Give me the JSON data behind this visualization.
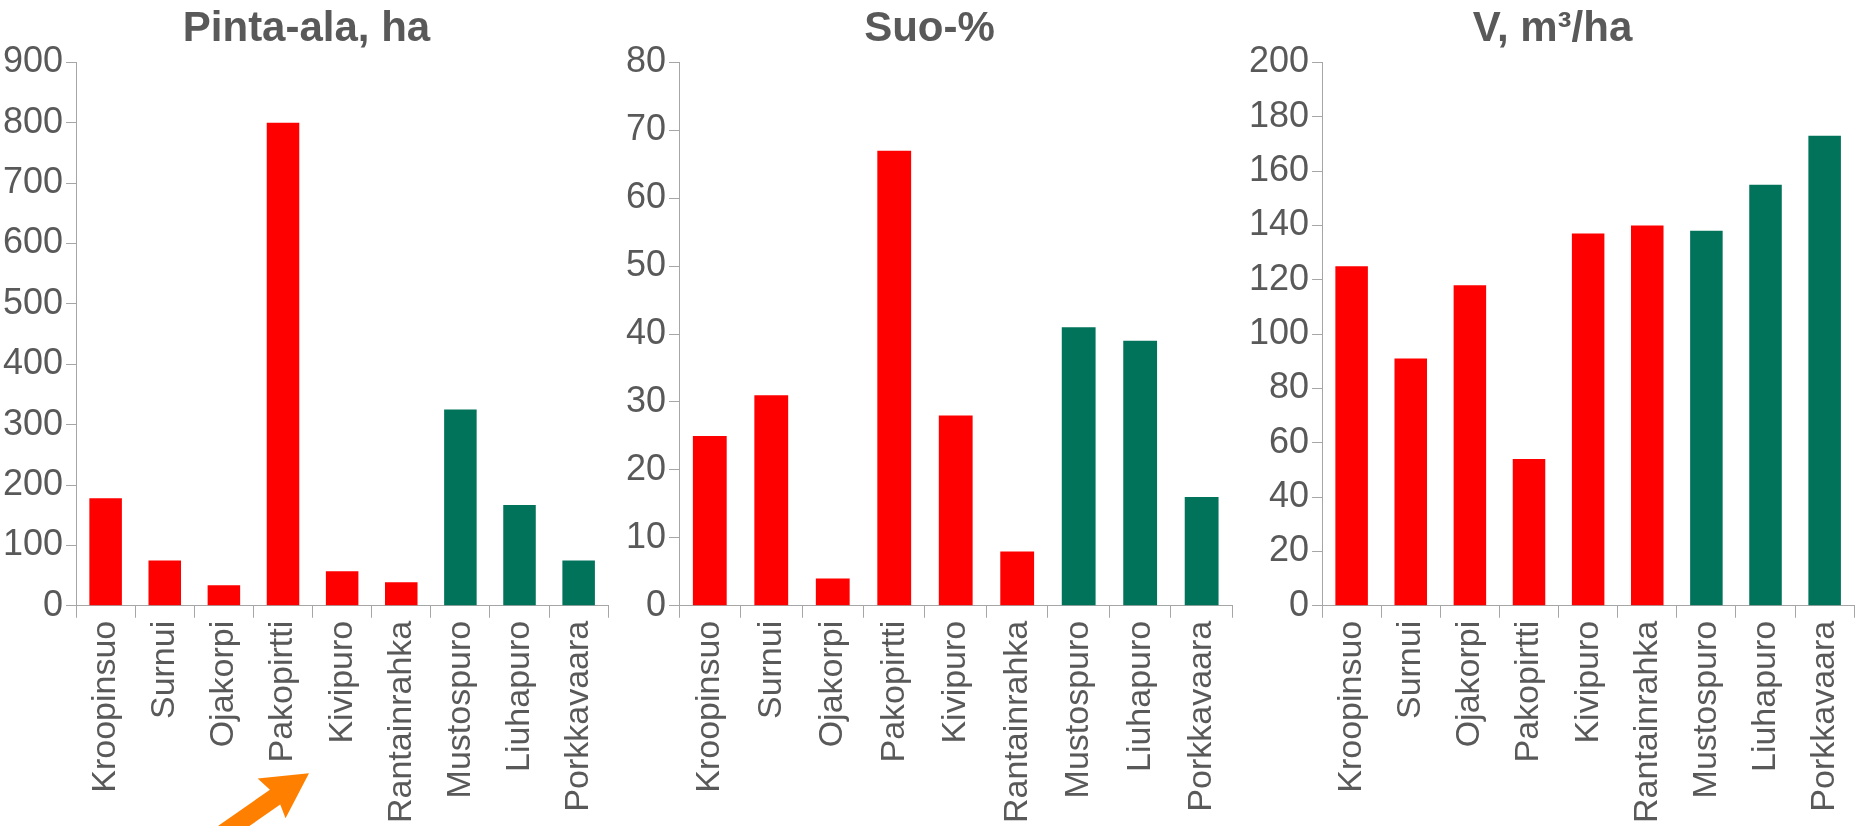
{
  "chart_data": [
    {
      "type": "bar",
      "title": "Pinta-ala, ha",
      "categories": [
        "Kroopinsuo",
        "Surnui",
        "Ojakorpi",
        "Pakopirtti",
        "Kivipuro",
        "Rantainrahka",
        "Mustospuro",
        "Liuhapuro",
        "Porkkavaara"
      ],
      "values": [
        178,
        75,
        34,
        800,
        57,
        39,
        325,
        167,
        75
      ],
      "colors": [
        "#ff0000",
        "#ff0000",
        "#ff0000",
        "#ff0000",
        "#ff0000",
        "#ff0000",
        "#00735a",
        "#00735a",
        "#00735a"
      ],
      "ylim": [
        0,
        900
      ],
      "yticks": [
        0,
        100,
        200,
        300,
        400,
        500,
        600,
        700,
        800,
        900
      ],
      "grid": false,
      "legend": false
    },
    {
      "type": "bar",
      "title": "Suo-%",
      "categories": [
        "Kroopinsuo",
        "Surnui",
        "Ojakorpi",
        "Pakopirtti",
        "Kivipuro",
        "Rantainrahka",
        "Mustospuro",
        "Liuhapuro",
        "Porkkavaara"
      ],
      "values": [
        25,
        31,
        4,
        67,
        28,
        8,
        41,
        39,
        16
      ],
      "colors": [
        "#ff0000",
        "#ff0000",
        "#ff0000",
        "#ff0000",
        "#ff0000",
        "#ff0000",
        "#00735a",
        "#00735a",
        "#00735a"
      ],
      "ylim": [
        0,
        80
      ],
      "yticks": [
        0,
        10,
        20,
        30,
        40,
        50,
        60,
        70,
        80
      ],
      "grid": false,
      "legend": false
    },
    {
      "type": "bar",
      "title": "V, m³/ha",
      "categories": [
        "Kroopinsuo",
        "Surnui",
        "Ojakorpi",
        "Pakopirtti",
        "Kivipuro",
        "Rantainrahka",
        "Mustospuro",
        "Liuhapuro",
        "Porkkavaara"
      ],
      "values": [
        125,
        91,
        118,
        54,
        137,
        140,
        138,
        155,
        173
      ],
      "colors": [
        "#ff0000",
        "#ff0000",
        "#ff0000",
        "#ff0000",
        "#ff0000",
        "#ff0000",
        "#00735a",
        "#00735a",
        "#00735a"
      ],
      "ylim": [
        0,
        200
      ],
      "yticks": [
        0,
        20,
        40,
        60,
        80,
        100,
        120,
        140,
        160,
        180,
        200
      ],
      "grid": false,
      "legend": false
    }
  ]
}
